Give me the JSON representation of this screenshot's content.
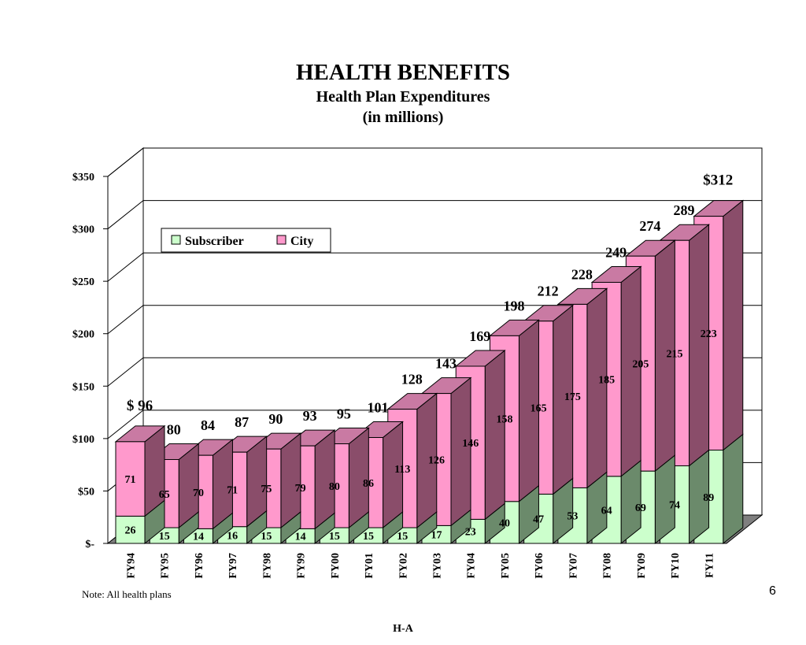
{
  "page": {
    "title": "HEALTH BENEFITS",
    "subtitle": "Health Plan Expenditures",
    "unit_line": "(in millions)",
    "note": "Note: All health plans",
    "page_number": "6",
    "footer_code": "H-A"
  },
  "colors": {
    "subscriber": "#ccffcc",
    "subscriber_side": "#6b8a6b",
    "city": "#ff99cc",
    "city_side": "#8a4d6a",
    "city_top": "#c97aa3",
    "floor": "#7f7f7f"
  },
  "chart_data": {
    "type": "bar",
    "stacked": true,
    "categories": [
      "FY94",
      "FY95",
      "FY96",
      "FY97",
      "FY98",
      "FY99",
      "FY00",
      "FY01",
      "FY02",
      "FY03",
      "FY04",
      "FY05",
      "FY06",
      "FY07",
      "FY08",
      "FY09",
      "FY10",
      "FY11"
    ],
    "series": [
      {
        "name": "Subscriber",
        "values": [
          26,
          15,
          14,
          16,
          15,
          14,
          15,
          15,
          15,
          17,
          23,
          40,
          47,
          53,
          64,
          69,
          74,
          89
        ],
        "labels": [
          "26",
          "15",
          "14",
          "16",
          "15",
          "14",
          "15",
          "15",
          "15",
          "17",
          "23",
          "40",
          "47",
          "53",
          "64",
          "69",
          "74",
          "89"
        ]
      },
      {
        "name": "City",
        "values": [
          71,
          65,
          70,
          71,
          75,
          79,
          80,
          86,
          113,
          126,
          146,
          158,
          165,
          175,
          185,
          205,
          215,
          223
        ],
        "labels": [
          "71",
          "65",
          "70",
          "71",
          "75",
          "79",
          "80",
          "86",
          "113",
          "126",
          "146",
          "158",
          "165",
          "175",
          "185",
          "205",
          "215",
          "223"
        ]
      }
    ],
    "totals": [
      96,
      80,
      84,
      87,
      90,
      93,
      95,
      101,
      128,
      143,
      169,
      198,
      212,
      228,
      249,
      274,
      289,
      312
    ],
    "total_labels": [
      "$ 96",
      "80",
      "84",
      "87",
      "90",
      "93",
      "95",
      "101",
      "128",
      "143",
      "169",
      "198",
      "212",
      "228",
      "249",
      "274",
      "289",
      "$312"
    ],
    "ylim": [
      0,
      350
    ],
    "yticks": [
      0,
      50,
      100,
      150,
      200,
      250,
      300,
      350
    ],
    "ytick_labels": [
      "$-",
      "$50",
      "$100",
      "$150",
      "$200",
      "$250",
      "$300",
      "$350"
    ],
    "grid": true,
    "legend": {
      "entries": [
        "Subscriber",
        "City"
      ],
      "placement": "top-left"
    }
  }
}
